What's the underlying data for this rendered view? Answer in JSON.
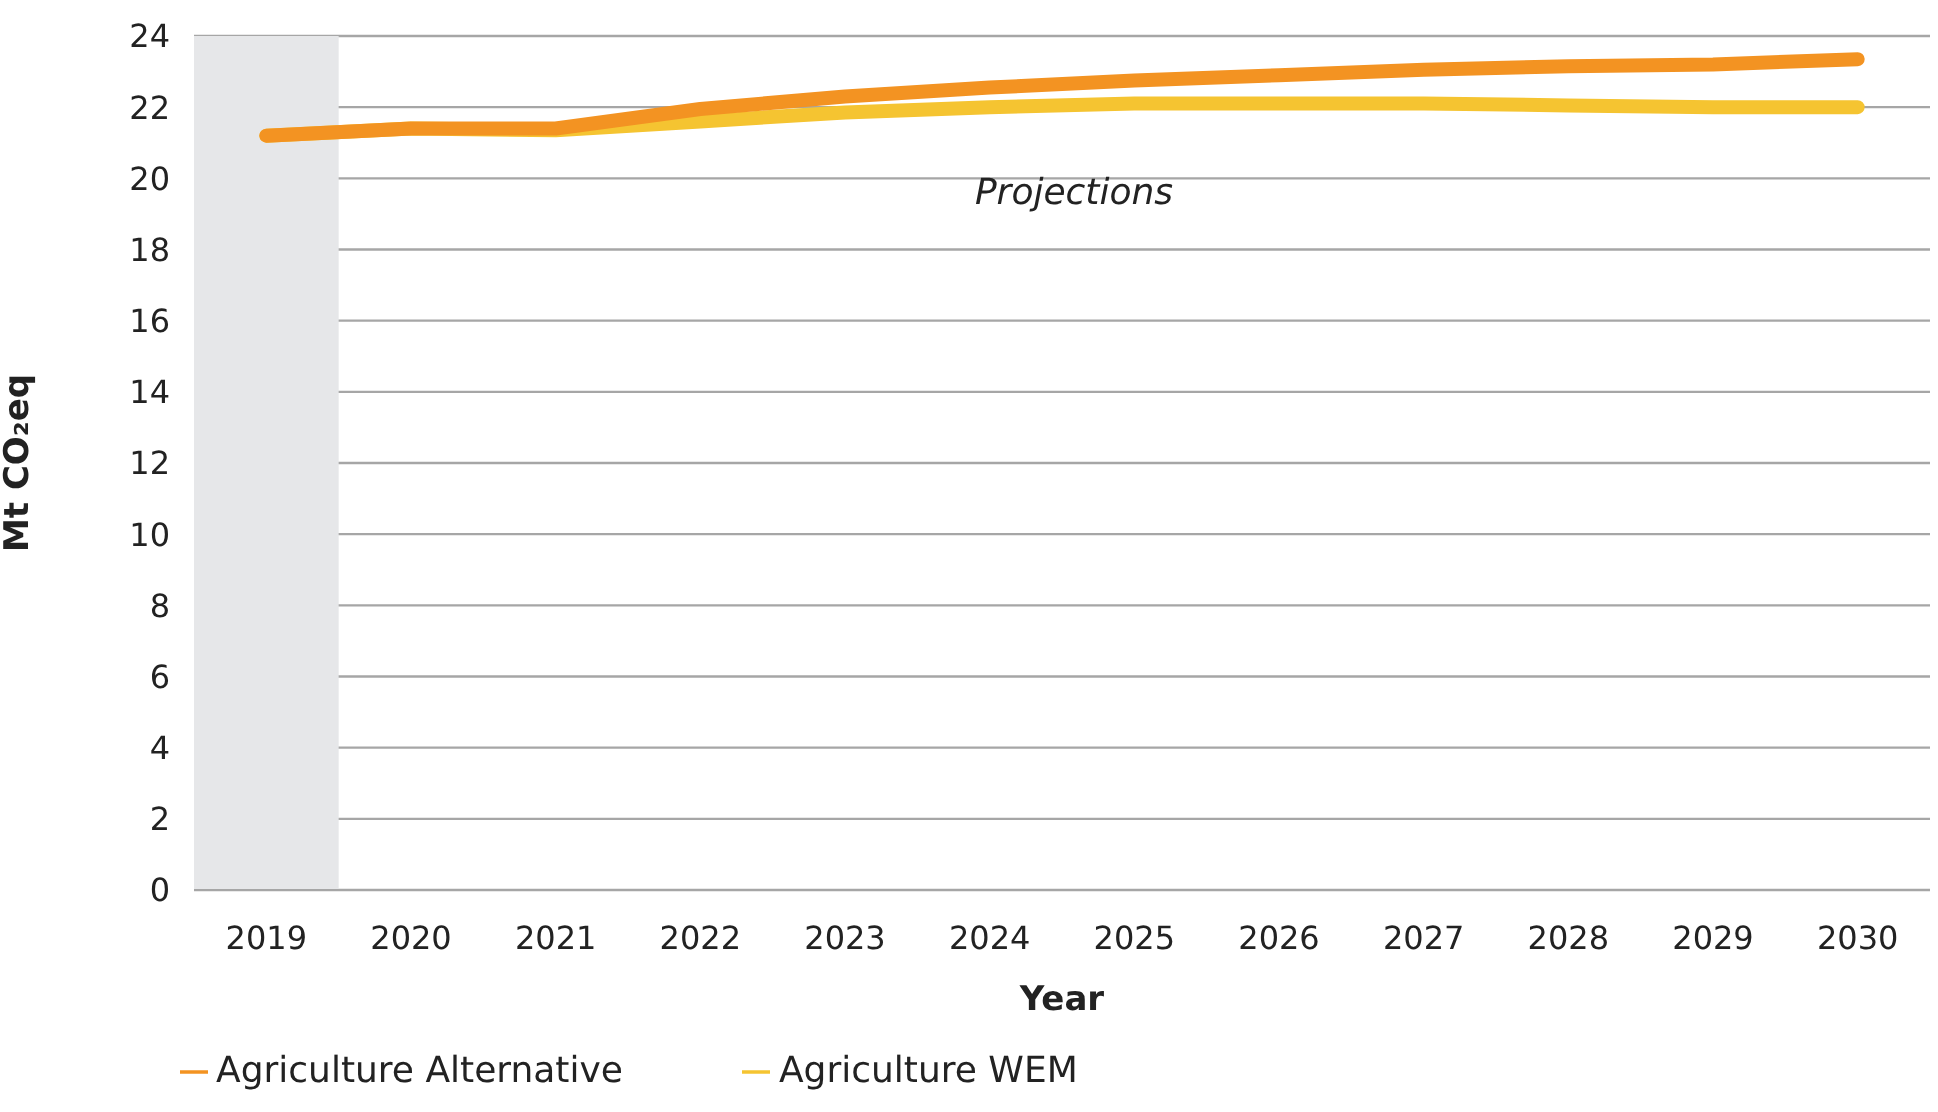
{
  "chart_data": {
    "type": "line",
    "xlabel": "Year",
    "ylabel": "Mt CO₂eq",
    "x": [
      2019,
      2020,
      2021,
      2022,
      2023,
      2024,
      2025,
      2026,
      2027,
      2028,
      2029,
      2030
    ],
    "series": [
      {
        "name": "Agriculture WEM",
        "color": "#f5c431",
        "values": [
          21.2,
          21.4,
          21.35,
          21.6,
          21.85,
          22.0,
          22.1,
          22.1,
          22.1,
          22.05,
          22.0,
          22.0
        ]
      },
      {
        "name": "Agriculture Alternative",
        "color": "#f39322",
        "values": [
          21.2,
          21.4,
          21.4,
          21.95,
          22.3,
          22.55,
          22.75,
          22.9,
          23.05,
          23.15,
          23.2,
          23.35
        ]
      }
    ],
    "xlim": [
      2018.5,
      2030.5
    ],
    "xticks": [
      2019,
      2020,
      2021,
      2022,
      2023,
      2024,
      2025,
      2026,
      2027,
      2028,
      2029,
      2030
    ],
    "ylim": [
      0,
      24
    ],
    "yticks": [
      0,
      2,
      4,
      6,
      8,
      10,
      12,
      14,
      16,
      18,
      20,
      22,
      24
    ],
    "bands": [
      {
        "axis": "x",
        "from": 2018.5,
        "to": 2019.5,
        "color": "#e6e7e9"
      }
    ],
    "annotations": [
      "Projections"
    ],
    "grid": "y",
    "legend": "bottom left",
    "marker": "none",
    "line_style": "solid"
  }
}
